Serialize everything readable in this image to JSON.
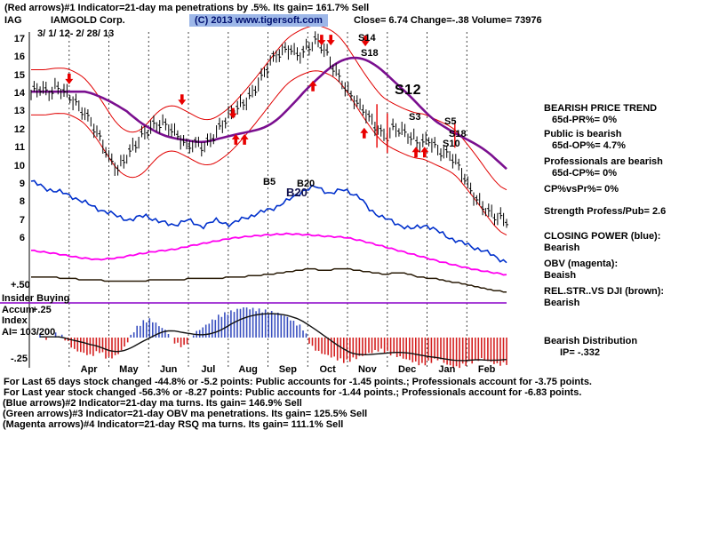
{
  "header": {
    "line1": "(Red arrows)#1 Indicator=21-day ma penetrations by .5%. Its gain= 161.7% Sell",
    "ticker": "IAG",
    "company": "IAMGOLD Corp.",
    "copyright": "(C) 2013 www.tigersoft.com",
    "quote": "Close=  6.74  Change=-.38 Volume= 73976",
    "date_range": "3/ 1/ 12- 2/ 28/ 13"
  },
  "axis_labels": {
    "plus50": "+.50",
    "insider": "Insider Buying",
    "accum": "Accum",
    "plus25": "+.25",
    "index_label": "Index",
    "ai": "AI= 103/200",
    "minus25": "-.25"
  },
  "analysis": {
    "groups": [
      {
        "lines": [
          {
            "t": "BEARISH PRICE TREND"
          },
          {
            "t": "65d-PR%= 0%",
            "i": 1
          }
        ]
      },
      {
        "lines": [
          {
            "t": "Public is bearish"
          },
          {
            "t": "65d-OP%= 4.7%",
            "i": 1
          }
        ]
      },
      {
        "lines": [
          {
            "t": "Professionals are bearish"
          },
          {
            "t": "65d-CP%= 0%",
            "i": 1
          }
        ]
      },
      {
        "lines": [
          {
            "t": "CP%vsPr%=  0%"
          }
        ]
      },
      {
        "lines": [
          {
            "t": "Strength Profess/Pub= 2.6"
          }
        ]
      },
      {
        "lines": [
          {
            "t": "CLOSING POWER (blue):"
          },
          {
            "t": "Bearish"
          }
        ]
      },
      {
        "lines": [
          {
            "t": "OBV (magenta):"
          },
          {
            "t": "Beaish"
          }
        ]
      },
      {
        "lines": [
          {
            "t": "REL.STR..VS DJI (brown):"
          },
          {
            "t": "Bearish"
          }
        ]
      },
      {
        "lines": [
          {
            "t": "Bearish Distribution"
          },
          {
            "t": "IP= -.332",
            "i": 2
          }
        ]
      }
    ]
  },
  "footer": {
    "stats": [
      "For Last 65 days stock changed -44.8% or -5.2 points:  Public accounts for -1.45 points.;  Professionals account for -3.75 points.",
      "For Last year stock changed -56.3% or -8.27 points:  Public accounts for -1.44 points.;  Professionals account for -6.83 points."
    ],
    "indicators": [
      "(Blue arrows)#2 Indicator=21-day ma turns. Its gain= 146.9% Sell",
      "(Green arrows)#3 Indicator=21-day OBV ma penetrations. Its gain= 125.5% Sell",
      "(Magenta arrows)#4 Indicator=21-day RSQ ma turns. Its gain= 111.1% Sell"
    ]
  },
  "chart_data": {
    "type": "line",
    "title": "IAG IAMGOLD Corp. daily stock chart with 21-day ma bands, Closing Power, OBV, Rel.Str. vs DJI and Accumulation Index",
    "x_range": [
      "3/1/12",
      "2/28/13"
    ],
    "month_labels": [
      "Apr",
      "May",
      "Jun",
      "Jul",
      "Aug",
      "Sep",
      "Oct",
      "Nov",
      "Dec",
      "Jan",
      "Feb"
    ],
    "price_axis": {
      "labels": [
        17,
        16,
        15,
        14,
        13,
        12,
        11,
        10,
        9,
        8,
        7,
        6
      ],
      "ylim": [
        6,
        17
      ]
    },
    "price_weekly_close": [
      14.0,
      14.2,
      13.9,
      14.4,
      14.2,
      13.6,
      12.9,
      12.2,
      11.5,
      10.6,
      9.9,
      10.4,
      11.0,
      11.7,
      12.3,
      12.5,
      12.1,
      11.5,
      11.0,
      11.3,
      11.2,
      11.6,
      12.1,
      12.7,
      13.3,
      13.8,
      14.4,
      15.1,
      15.8,
      16.3,
      16.6,
      16.2,
      16.5,
      16.8,
      16.3,
      15.5,
      14.7,
      13.9,
      13.2,
      12.6,
      12.1,
      11.7,
      12.2,
      11.8,
      11.4,
      11.2,
      11.6,
      11.0,
      10.6,
      10.2,
      9.4,
      8.6,
      8.0,
      7.4,
      7.0,
      6.9
    ],
    "bands": {
      "offset": 1.25,
      "color": "#e00000"
    },
    "ma": {
      "color": "#7a0f8f",
      "label": "21-day ma"
    },
    "closing_power": {
      "color": "#0030cc",
      "points_norm": [
        [
          0,
          0.96
        ],
        [
          0.03,
          0.88
        ],
        [
          0.06,
          0.84
        ],
        [
          0.09,
          0.78
        ],
        [
          0.12,
          0.7
        ],
        [
          0.15,
          0.63
        ],
        [
          0.18,
          0.57
        ],
        [
          0.21,
          0.52
        ],
        [
          0.24,
          0.58
        ],
        [
          0.27,
          0.5
        ],
        [
          0.3,
          0.47
        ],
        [
          0.33,
          0.52
        ],
        [
          0.36,
          0.45
        ],
        [
          0.39,
          0.52
        ],
        [
          0.42,
          0.47
        ],
        [
          0.45,
          0.55
        ],
        [
          0.48,
          0.6
        ],
        [
          0.51,
          0.66
        ],
        [
          0.54,
          0.74
        ],
        [
          0.57,
          0.85
        ],
        [
          0.6,
          0.9
        ],
        [
          0.63,
          0.82
        ],
        [
          0.66,
          0.87
        ],
        [
          0.69,
          0.78
        ],
        [
          0.71,
          0.65
        ],
        [
          0.74,
          0.55
        ],
        [
          0.77,
          0.48
        ],
        [
          0.8,
          0.42
        ],
        [
          0.83,
          0.47
        ],
        [
          0.86,
          0.38
        ],
        [
          0.89,
          0.3
        ],
        [
          0.92,
          0.24
        ],
        [
          0.95,
          0.18
        ],
        [
          0.98,
          0.1
        ],
        [
          1,
          0.05
        ]
      ]
    },
    "obv": {
      "color": "#ff00f0",
      "points_norm": [
        [
          0,
          0.58
        ],
        [
          0.05,
          0.52
        ],
        [
          0.1,
          0.44
        ],
        [
          0.14,
          0.4
        ],
        [
          0.18,
          0.43
        ],
        [
          0.22,
          0.5
        ],
        [
          0.26,
          0.56
        ],
        [
          0.3,
          0.6
        ],
        [
          0.34,
          0.68
        ],
        [
          0.38,
          0.75
        ],
        [
          0.42,
          0.82
        ],
        [
          0.46,
          0.86
        ],
        [
          0.5,
          0.89
        ],
        [
          0.54,
          0.91
        ],
        [
          0.58,
          0.89
        ],
        [
          0.62,
          0.86
        ],
        [
          0.66,
          0.84
        ],
        [
          0.7,
          0.76
        ],
        [
          0.74,
          0.66
        ],
        [
          0.78,
          0.56
        ],
        [
          0.82,
          0.46
        ],
        [
          0.86,
          0.36
        ],
        [
          0.9,
          0.27
        ],
        [
          0.94,
          0.19
        ],
        [
          1,
          0.1
        ]
      ]
    },
    "rel_str": {
      "color": "#2a1c08",
      "points_norm": [
        [
          0,
          0.64
        ],
        [
          0.06,
          0.6
        ],
        [
          0.12,
          0.54
        ],
        [
          0.18,
          0.5
        ],
        [
          0.24,
          0.52
        ],
        [
          0.3,
          0.55
        ],
        [
          0.36,
          0.58
        ],
        [
          0.42,
          0.61
        ],
        [
          0.48,
          0.67
        ],
        [
          0.54,
          0.78
        ],
        [
          0.58,
          0.87
        ],
        [
          0.62,
          0.84
        ],
        [
          0.66,
          0.88
        ],
        [
          0.7,
          0.8
        ],
        [
          0.74,
          0.72
        ],
        [
          0.78,
          0.75
        ],
        [
          0.82,
          0.62
        ],
        [
          0.86,
          0.55
        ],
        [
          0.9,
          0.44
        ],
        [
          0.94,
          0.32
        ],
        [
          1,
          0.15
        ]
      ]
    },
    "accum_hist": {
      "pos_color": "#3a50c0",
      "neg_color": "#d42020",
      "ai_value": "AI= 103/200",
      "scale_labels": [
        "+.50",
        "+.25",
        "-.25"
      ],
      "weekly_values": [
        0.1,
        -0.1,
        0.15,
        -0.05,
        -0.4,
        -0.5,
        -0.6,
        -0.45,
        -0.7,
        -0.6,
        -0.3,
        0.2,
        0.5,
        0.6,
        0.4,
        0.2,
        -0.2,
        -0.3,
        0.1,
        0.3,
        0.5,
        0.7,
        0.8,
        0.9,
        1.0,
        0.95,
        0.9,
        0.85,
        0.8,
        0.7,
        0.5,
        0.3,
        -0.3,
        -0.5,
        -0.6,
        -0.7,
        -0.8,
        -0.7,
        -0.6,
        -0.5,
        -0.4,
        -0.5,
        -0.6,
        -0.7,
        -0.8,
        -0.9,
        -0.8,
        -0.7,
        -0.9,
        -1.0,
        -0.9,
        -0.8,
        -0.7,
        -0.8,
        -0.9,
        -0.85
      ]
    },
    "arrows": {
      "color": "#e80000",
      "down": [
        [
          1.0,
          14.5
        ],
        [
          3.84,
          13.35
        ],
        [
          5.12,
          12.6
        ],
        [
          7.35,
          16.65
        ],
        [
          7.58,
          16.65
        ],
        [
          8.45,
          16.6
        ]
      ],
      "up": [
        [
          5.19,
          11.75
        ],
        [
          5.41,
          11.75
        ],
        [
          7.13,
          14.7
        ],
        [
          8.42,
          12.1
        ],
        [
          9.72,
          11.05
        ],
        [
          9.94,
          11.05
        ]
      ]
    },
    "sell_ticks": [
      [
        8.74,
        13.4,
        11.0
      ],
      [
        9.0,
        12.9,
        10.7
      ],
      [
        10.7,
        12.4,
        11.0
      ]
    ],
    "annotations": [
      {
        "text": "S14",
        "x": 403,
        "y": 37
      },
      {
        "text": "S18",
        "x": 406,
        "y": 54
      },
      {
        "text": "S12",
        "x": 444,
        "y": 93,
        "cls": "bigs"
      },
      {
        "text": "S3",
        "x": 460,
        "y": 126
      },
      {
        "text": "S5",
        "x": 500,
        "y": 131
      },
      {
        "text": "S18",
        "x": 505,
        "y": 145
      },
      {
        "text": "S10",
        "x": 498,
        "y": 156
      },
      {
        "text": "B5",
        "x": 296,
        "y": 199
      },
      {
        "text": "B20",
        "x": 334,
        "y": 201
      },
      {
        "text": "B20",
        "x": 322,
        "y": 209,
        "cls": "bigb"
      }
    ],
    "colors": {
      "divider_purple": "#8a00c8",
      "price_bars": "#000000"
    }
  }
}
